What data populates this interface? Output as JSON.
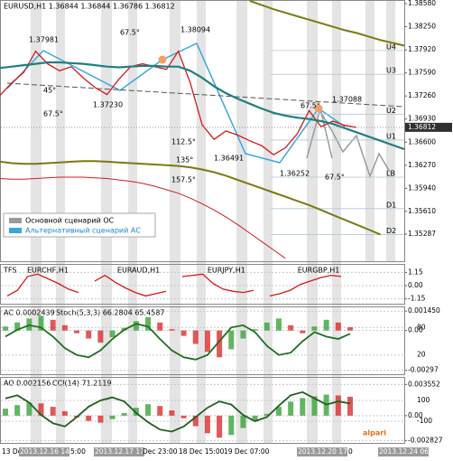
{
  "chart_data": [
    {
      "type": "line",
      "title": "EURUSD,H1 1.36844 1.36844 1.36786 1.36812",
      "ylim": [
        1.34885,
        1.38632
      ],
      "yticks": [
        {
          "value": 1.3858,
          "label": "1.38580"
        },
        {
          "value": 1.3825,
          "label": "1.38250"
        },
        {
          "value": 1.3792,
          "label": "1.37920"
        },
        {
          "value": 1.3759,
          "label": "1.37590"
        },
        {
          "value": 1.3726,
          "label": "1.37260"
        },
        {
          "value": 1.3693,
          "label": "1.36930"
        },
        {
          "value": 1.366,
          "label": "1.36600"
        },
        {
          "value": 1.3627,
          "label": "1.36270"
        },
        {
          "value": 1.3594,
          "label": "1.35940"
        },
        {
          "value": 1.3561,
          "label": "1.35610"
        },
        {
          "value": 1.35287,
          "label": "1.35287"
        }
      ],
      "current_price": {
        "value": 1.36812,
        "label": "1.36812"
      },
      "levels": [
        {
          "value": 1.3791,
          "label": "U4"
        },
        {
          "value": 1.3757,
          "label": "U3"
        },
        {
          "value": 1.37,
          "label": "U2"
        },
        {
          "value": 1.3663,
          "label": "U1"
        },
        {
          "value": 1.361,
          "label": "LB"
        },
        {
          "value": 1.3565,
          "label": "D1"
        },
        {
          "value": 1.3528,
          "label": "D2"
        }
      ],
      "annotations": [
        "1.37981",
        "67.5°",
        "1.38094",
        "45°",
        "1.37230",
        "67.5°",
        "112.5°",
        "1.37088",
        "67.5°",
        "135°",
        "1.36491",
        "1.36252",
        "157.5°",
        "67.5°"
      ],
      "legend": [
        "Основной сценарий ОС",
        "Альтернативный сценарий АС"
      ],
      "series": [
        {
          "color": "#d81818",
          "width": 1.3,
          "values": [
            1.3727,
            1.3745,
            1.376,
            1.379,
            1.3772,
            1.3762,
            1.3768,
            1.3752,
            1.3738,
            1.3728,
            1.375,
            1.3768,
            1.3772,
            1.3768,
            1.3764,
            1.379,
            1.3745,
            1.3685,
            1.3664,
            1.3676,
            1.367,
            1.3662,
            1.3655,
            1.3642,
            1.3652,
            1.3672,
            1.3705,
            1.3682,
            1.369,
            1.3684,
            1.3681,
            null,
            null,
            null,
            null
          ]
        },
        {
          "color": "#1f7f7f",
          "width": 2.2,
          "values": [
            1.3766,
            1.3768,
            1.377,
            1.3772,
            1.3774,
            1.3774,
            1.3773,
            1.3772,
            1.377,
            1.3768,
            1.3767,
            1.3768,
            1.3769,
            1.3769,
            1.3768,
            1.3768,
            1.3762,
            1.3752,
            1.374,
            1.373,
            1.3722,
            1.3715,
            1.3708,
            1.3702,
            1.3698,
            1.3695,
            1.3693,
            1.369,
            1.3686,
            1.368,
            1.3674,
            1.3668,
            1.3662,
            1.3656,
            1.365
          ]
        },
        {
          "color": "#7a7a10",
          "width": 2,
          "values": [
            null,
            null,
            null,
            null,
            null,
            null,
            null,
            null,
            null,
            null,
            null,
            null,
            null,
            null,
            null,
            null,
            null,
            null,
            null,
            null,
            null,
            1.3862,
            1.3856,
            1.385,
            1.3845,
            1.384,
            1.3835,
            1.383,
            1.3825,
            1.382,
            1.3816,
            1.3811,
            1.3806,
            1.3802,
            1.3798
          ]
        },
        {
          "color": "#7a7a10",
          "width": 2,
          "values": [
            1.3632,
            1.363,
            1.3629,
            1.3629,
            1.363,
            1.3631,
            1.3632,
            1.3633,
            1.3633,
            1.3632,
            1.3631,
            1.363,
            1.3629,
            1.3628,
            1.3627,
            1.3626,
            1.3624,
            1.3621,
            1.3617,
            1.3612,
            1.3606,
            1.36,
            1.3594,
            1.3588,
            1.3582,
            1.3576,
            1.357,
            1.3563,
            1.3556,
            1.3549,
            1.3542,
            1.3535,
            1.3528,
            null,
            null
          ]
        },
        {
          "color": "#cc2020",
          "width": 1,
          "values": [
            1.3608,
            1.3607,
            1.3607,
            1.3608,
            1.3609,
            1.361,
            1.361,
            1.361,
            1.3609,
            1.3608,
            1.3606,
            1.3604,
            1.3601,
            1.3597,
            1.3592,
            1.3587,
            1.358,
            1.3572,
            1.3563,
            1.3553,
            1.3542,
            1.353,
            1.3518,
            1.3506,
            1.3494,
            null,
            null,
            null,
            null,
            null,
            null,
            null,
            null,
            null,
            null
          ]
        }
      ]
    },
    {
      "type": "multi",
      "title": "TFS",
      "ylim": [
        -1.5,
        1.5
      ],
      "yticks": [
        {
          "value": 1.15,
          "label": "1.15"
        },
        {
          "value": 0,
          "label": "0.00"
        },
        {
          "value": -1.15,
          "label": "-1.15"
        }
      ],
      "series": [
        {
          "name": "EURCHF,H1",
          "color": "#d81818",
          "values": [
            -0.9,
            -0.4,
            0.8,
            1.0,
            0.6,
            0.2,
            -0.3,
            -0.6
          ]
        },
        {
          "name": "EURAUD,H1",
          "color": "#d81818",
          "values": [
            0.4,
            0.9,
            0.3,
            -0.2,
            -0.6,
            -0.9,
            -0.7,
            -0.5
          ]
        },
        {
          "name": "EURJPY,H1",
          "color": "#d81818",
          "values": [
            0.8,
            0.9,
            1.0,
            0.2,
            -0.3,
            -0.5,
            -0.6,
            -0.4
          ]
        },
        {
          "name": "EURGBP,H1",
          "color": "#d81818",
          "values": [
            -0.9,
            -0.7,
            -0.4,
            0.1,
            0.4,
            0.7,
            0.9,
            0.8
          ]
        }
      ]
    },
    {
      "type": "histogram",
      "title": "AC 0.0002439",
      "subtitle": "Stoch(5,3,3) 66.2804 65.4587",
      "ylim": [
        -0.0032,
        0.0016
      ],
      "yticks": [
        {
          "value": 0.00145,
          "label": "0.001450"
        },
        {
          "value": 0,
          "label": "0.00"
        },
        {
          "value": -0.002975,
          "label": "-0.00297"
        }
      ],
      "y2lim": [
        -20,
        120
      ],
      "y2ticks": [
        80,
        20
      ],
      "color": "#2e9e2e",
      "color_down": "#d82020",
      "values": [
        0.0003,
        0.0006,
        0.0009,
        0.0011,
        0.0008,
        0.0004,
        -0.0002,
        -0.0006,
        -0.0009,
        -0.0005,
        0.0002,
        0.0007,
        0.001,
        0.0006,
        0.0001,
        -0.0004,
        -0.001,
        -0.0016,
        -0.002,
        -0.0014,
        -0.0006,
        0.0001,
        0.0006,
        0.0009,
        0.0004,
        -0.0002,
        0.0003,
        0.0008,
        0.0006,
        0.0002439
      ],
      "series": [
        {
          "color": "#1f6f1f",
          "axis": "y2",
          "values": [
            60,
            75,
            85,
            80,
            60,
            35,
            20,
            15,
            30,
            55,
            75,
            88,
            82,
            55,
            30,
            15,
            10,
            20,
            50,
            80,
            85,
            70,
            40,
            20,
            25,
            50,
            70,
            60,
            55,
            66.2804
          ]
        }
      ]
    },
    {
      "type": "histogram",
      "title": "AO 0.002156",
      "subtitle": "CCI(14) 71.2119",
      "ylim": [
        -0.003,
        0.0041
      ],
      "yticks": [
        {
          "value": 0.003552,
          "label": "0.003552"
        },
        {
          "value": 0,
          "label": "0.00"
        },
        {
          "value": -0.002827,
          "label": "-0.002827"
        }
      ],
      "y2lim": [
        -300,
        300
      ],
      "y2ticks": [
        100,
        -100
      ],
      "color": "#2e9e2e",
      "color_down": "#d82020",
      "values": [
        0.0008,
        0.0012,
        0.0015,
        0.0014,
        0.001,
        0.0005,
        -0.0002,
        -0.0006,
        -0.0008,
        -0.0004,
        0.0003,
        0.0009,
        0.0013,
        0.0011,
        0.0006,
        -0.0003,
        -0.0012,
        -0.002,
        -0.0025,
        -0.0022,
        -0.0014,
        -0.0006,
        0.0002,
        0.001,
        0.0016,
        0.002,
        0.0022,
        0.0024,
        0.0023,
        0.002156
      ],
      "series": [
        {
          "color": "#1f5f1f",
          "axis": "y2",
          "values": [
            120,
            150,
            80,
            -40,
            -120,
            -150,
            -60,
            40,
            100,
            130,
            90,
            -20,
            -110,
            -180,
            -200,
            -150,
            -60,
            30,
            90,
            60,
            -40,
            -100,
            -60,
            50,
            150,
            180,
            120,
            60,
            90,
            71.2119
          ]
        }
      ]
    }
  ],
  "time_axis": {
    "labels": [
      "13 Dec",
      "2013.12.16 14:00",
      "5:00",
      "2013.12.17 17:00",
      "Dec 23:00",
      "18 Dec 15:00",
      "19 Dec 07:00",
      "2013.12.20 17:00",
      "0",
      "2013.12.24 06:00"
    ]
  },
  "brand": "alpari"
}
